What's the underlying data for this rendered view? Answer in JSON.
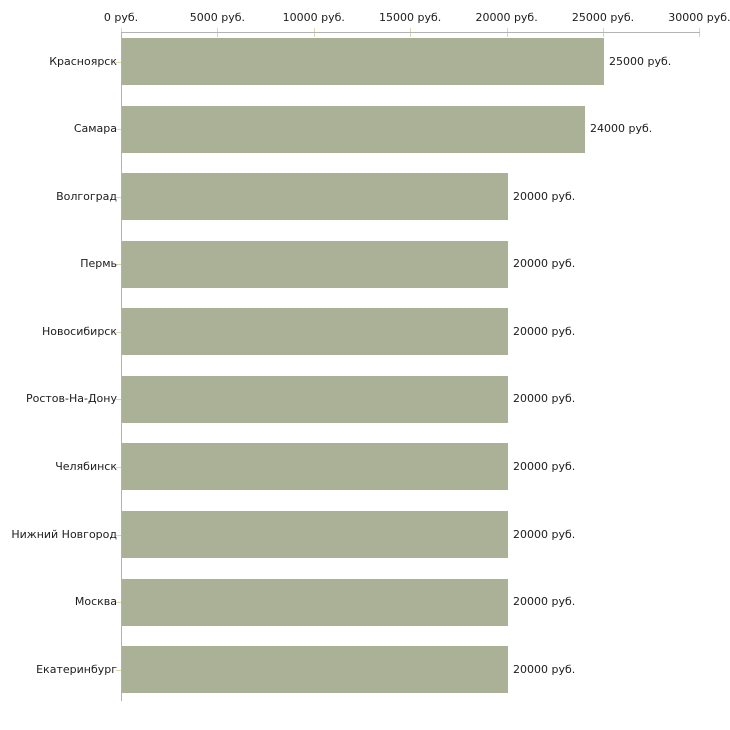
{
  "chart_data": {
    "type": "bar",
    "orientation": "horizontal",
    "title": "",
    "unit": "руб.",
    "categories": [
      "Красноярск",
      "Самара",
      "Волгоград",
      "Пермь",
      "Новосибирск",
      "Ростов-На-Дону",
      "Челябинск",
      "Нижний Новгород",
      "Москва",
      "Екатеринбург"
    ],
    "values": [
      25000,
      24000,
      20000,
      20000,
      20000,
      20000,
      20000,
      20000,
      20000,
      20000
    ],
    "value_labels": [
      "25000 руб.",
      "24000 руб.",
      "20000 руб.",
      "20000 руб.",
      "20000 руб.",
      "20000 руб.",
      "20000 руб.",
      "20000 руб.",
      "20000 руб.",
      "20000 руб."
    ],
    "x_axis": {
      "min": 0,
      "max": 30000,
      "tick_step": 5000,
      "tick_values": [
        0,
        5000,
        10000,
        15000,
        20000,
        25000,
        30000
      ],
      "tick_labels": [
        "0 руб.",
        "5000 руб.",
        "10000 руб.",
        "15000 руб.",
        "20000 руб.",
        "25000 руб.",
        "30000 руб."
      ]
    },
    "grid": false,
    "legend_position": "none",
    "colors": {
      "bar": "#abb196",
      "axis": "#b3b3b3",
      "tick_mark": "#d6d8ad",
      "text": "#1c1c1c",
      "background": "#ffffff"
    }
  }
}
